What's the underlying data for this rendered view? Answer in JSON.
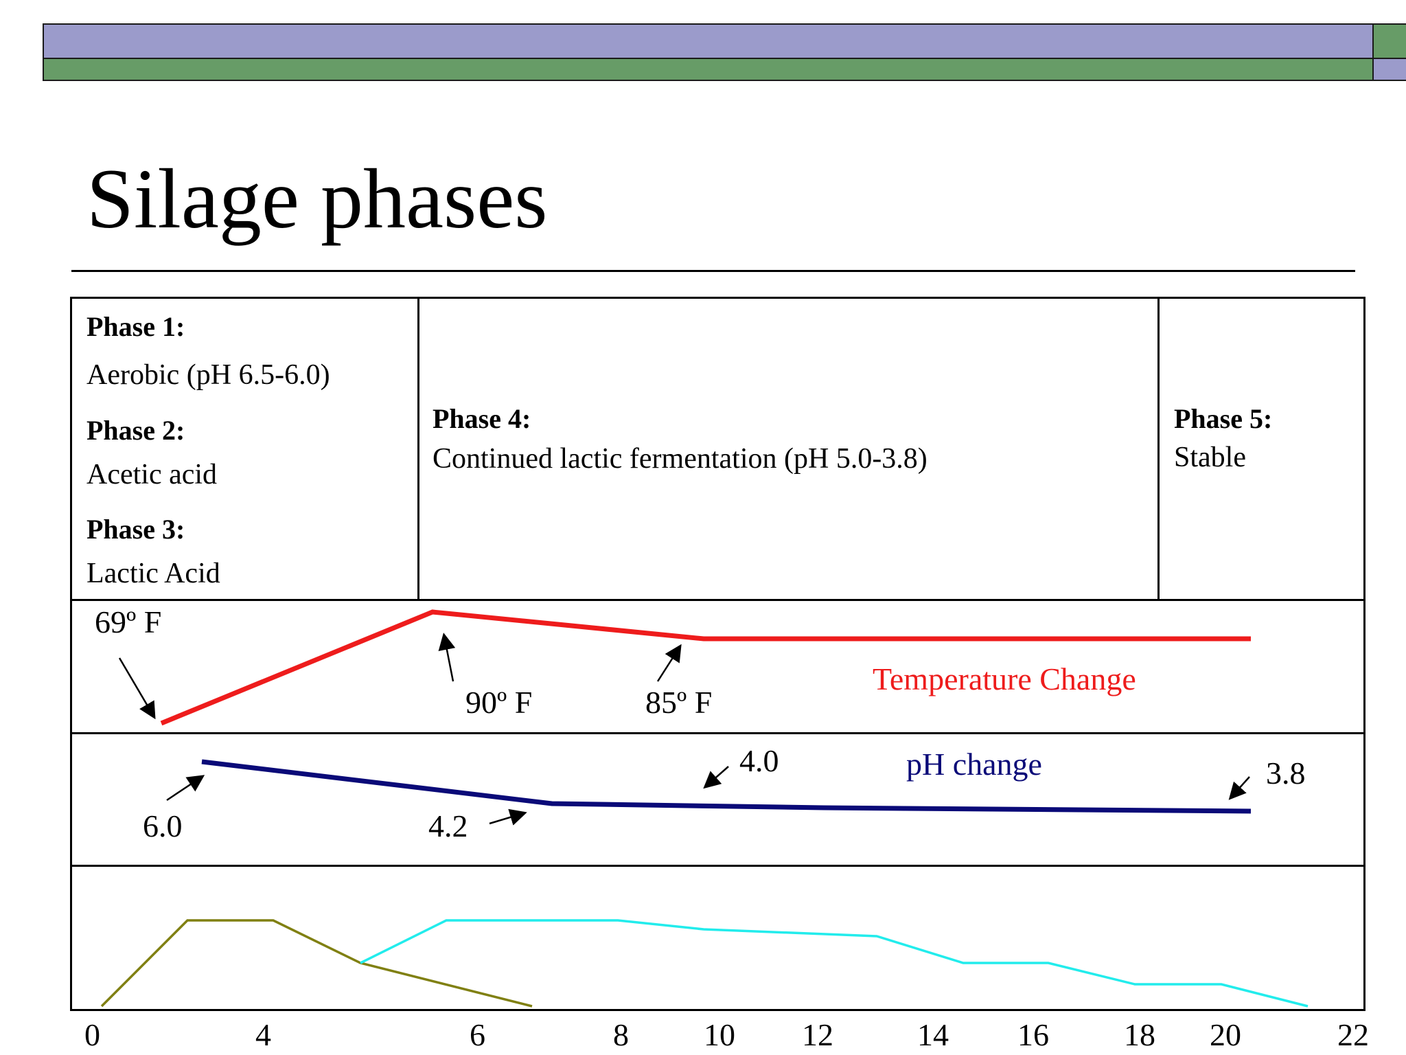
{
  "title": "Silage phases",
  "colors": {
    "banner_purple": "#9b9bcb",
    "banner_green": "#679c67",
    "temperature": "#ee1c1c",
    "ph": "#0a0a78",
    "series_olive": "#808012",
    "series_cyan": "#22ecec"
  },
  "phases": {
    "p1_head": "Phase 1:",
    "p1_text": "Aerobic (pH 6.5-6.0)",
    "p2_head": "Phase 2:",
    "p2_text": "Acetic acid",
    "p3_head": "Phase 3:",
    "p3_text": "Lactic Acid",
    "p4_head": "Phase 4:",
    "p4_text": "Continued lactic fermentation (pH 5.0-3.8)",
    "p5_head": "Phase 5:",
    "p5_text": "Stable"
  },
  "temperature": {
    "label": "Temperature Change",
    "annotations": [
      "69º F",
      "90º F",
      "85º F"
    ]
  },
  "ph": {
    "label": "pH change",
    "annotations": [
      "6.0",
      "4.2",
      "4.0",
      "3.8"
    ]
  },
  "x_axis": {
    "ticks": [
      "0",
      "4",
      "6",
      "8",
      "10",
      "12",
      "14",
      "16",
      "18",
      "20",
      "22"
    ]
  }
}
